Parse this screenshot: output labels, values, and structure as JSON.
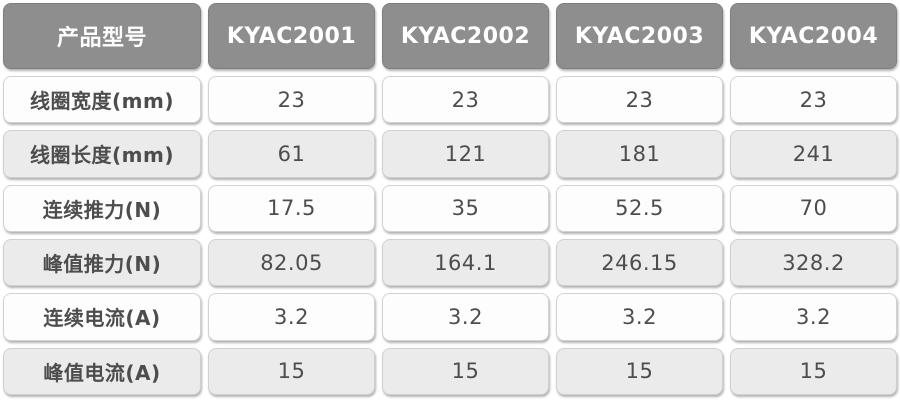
{
  "colors": {
    "header_bg": "#8e8e8e",
    "header_text": "#ffffff",
    "row_light_bg": "#fdfdfd",
    "row_shaded_bg": "#ebebeb",
    "cell_text": "#4d4d4d",
    "page_bg": "#ffffff"
  },
  "table": {
    "header": [
      "产品型号",
      "KYAC2001",
      "KYAC2002",
      "KYAC2003",
      "KYAC2004"
    ],
    "rows": [
      {
        "label": "线圈宽度(mm)",
        "values": [
          "23",
          "23",
          "23",
          "23"
        ]
      },
      {
        "label": "线圈长度(mm)",
        "values": [
          "61",
          "121",
          "181",
          "241"
        ]
      },
      {
        "label": "连续推力(N)",
        "values": [
          "17.5",
          "35",
          "52.5",
          "70"
        ]
      },
      {
        "label": "峰值推力(N)",
        "values": [
          "82.05",
          "164.1",
          "246.15",
          "328.2"
        ]
      },
      {
        "label": "连续电流(A)",
        "values": [
          "3.2",
          "3.2",
          "3.2",
          "3.2"
        ]
      },
      {
        "label": "峰值电流(A)",
        "values": [
          "15",
          "15",
          "15",
          "15"
        ]
      }
    ]
  },
  "chart_data": {
    "type": "table",
    "title": "",
    "columns": [
      "产品型号",
      "KYAC2001",
      "KYAC2002",
      "KYAC2003",
      "KYAC2004"
    ],
    "rows": [
      [
        "线圈宽度(mm)",
        23,
        23,
        23,
        23
      ],
      [
        "线圈长度(mm)",
        61,
        121,
        181,
        241
      ],
      [
        "连续推力(N)",
        17.5,
        35,
        52.5,
        70
      ],
      [
        "峰值推力(N)",
        82.05,
        164.1,
        246.15,
        328.2
      ],
      [
        "连续电流(A)",
        3.2,
        3.2,
        3.2,
        3.2
      ],
      [
        "峰值电流(A)",
        15,
        15,
        15,
        15
      ]
    ],
    "layout_hints": {
      "header_style": "gray rounded cells, white bold text",
      "row_striping": "odd rows white, even rows light gray",
      "alignment": "center"
    }
  }
}
